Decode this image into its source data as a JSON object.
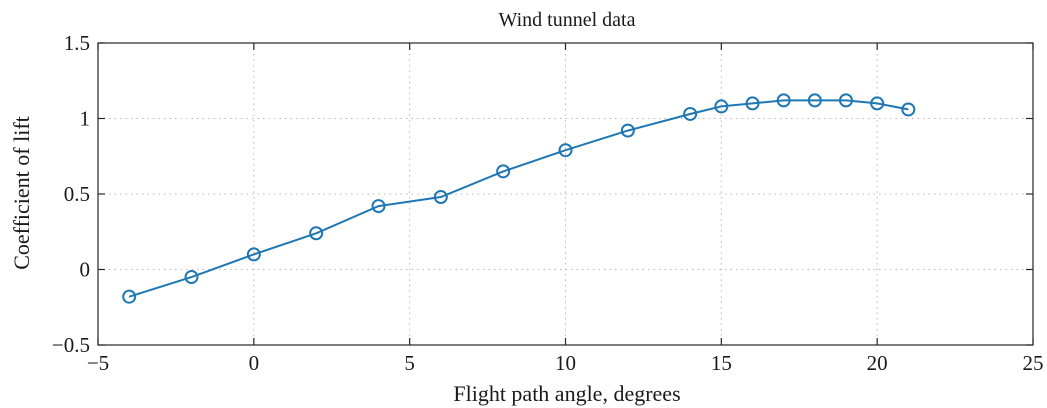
{
  "chart_data": {
    "type": "line",
    "title": "Wind tunnel data",
    "xlabel": "Flight path angle, degrees",
    "ylabel": "Coefficient of lift",
    "xlim": [
      -5,
      25
    ],
    "ylim": [
      -0.5,
      1.5
    ],
    "x_ticks": [
      -5,
      0,
      5,
      10,
      15,
      20,
      25
    ],
    "x_tick_labels": [
      "−5",
      "0",
      "5",
      "10",
      "15",
      "20",
      "25"
    ],
    "y_ticks": [
      -0.5,
      0,
      0.5,
      1,
      1.5
    ],
    "y_tick_labels": [
      "−0.5",
      "0",
      "0.5",
      "1",
      "1.5"
    ],
    "grid": true,
    "series": [
      {
        "marker": "circle",
        "color": "#1f77b4",
        "x": [
          -4,
          -2,
          0,
          2,
          4,
          6,
          8,
          10,
          12,
          14,
          15,
          16,
          17,
          18,
          19,
          20,
          21
        ],
        "y": [
          -0.18,
          -0.05,
          0.1,
          0.24,
          0.42,
          0.48,
          0.65,
          0.79,
          0.92,
          1.03,
          1.08,
          1.1,
          1.12,
          1.12,
          1.12,
          1.1,
          1.06
        ]
      }
    ]
  }
}
